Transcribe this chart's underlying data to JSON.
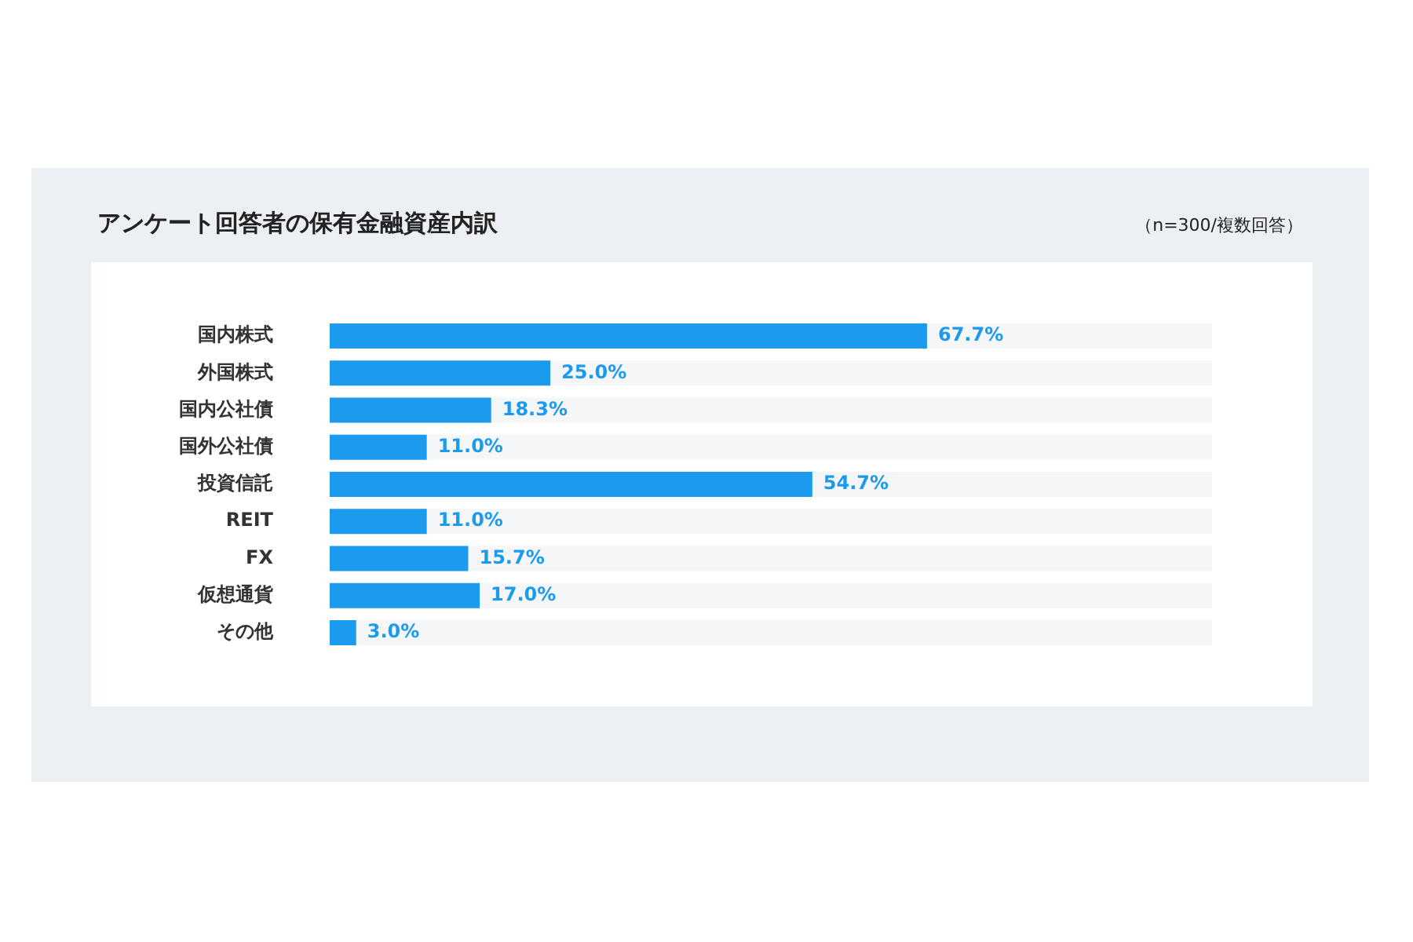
{
  "chart_data": {
    "type": "bar",
    "orientation": "horizontal",
    "title": "アンケート回答者の保有金融資産内訳",
    "subtitle": "（n=300/複数回答）",
    "categories": [
      "国内株式",
      "外国株式",
      "国内公社債",
      "国外公社債",
      "投資信託",
      "REIT",
      "FX",
      "仮想通貨",
      "その他"
    ],
    "values": [
      67.7,
      25.0,
      18.3,
      11.0,
      54.7,
      11.0,
      15.7,
      17.0,
      3.0
    ],
    "value_labels": [
      "67.7%",
      "25.0%",
      "18.3%",
      "11.0%",
      "54.7%",
      "11.0%",
      "15.7%",
      "17.0%",
      "3.0%"
    ],
    "color": "#1b9aee",
    "xlim": [
      0,
      100
    ],
    "tick_labels": "y",
    "legend": false
  }
}
